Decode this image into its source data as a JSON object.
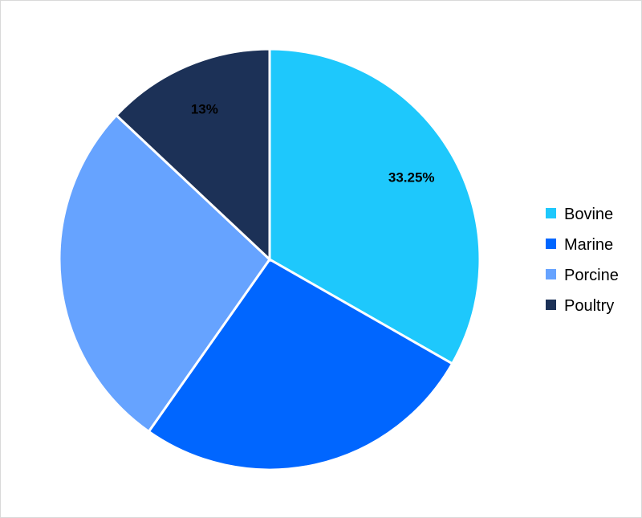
{
  "chart_data": {
    "type": "pie",
    "title": "",
    "categories": [
      "Bovine",
      "Marine",
      "Porcine",
      "Poultry"
    ],
    "values": [
      33.25,
      26.5,
      27.25,
      13
    ],
    "data_labels": [
      "33.25%",
      "",
      "",
      "13%"
    ],
    "colors": [
      "#1EC8FC",
      "#0066FF",
      "#66A3FF",
      "#1C3157"
    ],
    "start_angle_deg": 0,
    "direction": "clockwise",
    "legend": {
      "placement": "right",
      "entries": [
        "Bovine",
        "Marine",
        "Porcine",
        "Poultry"
      ]
    }
  }
}
